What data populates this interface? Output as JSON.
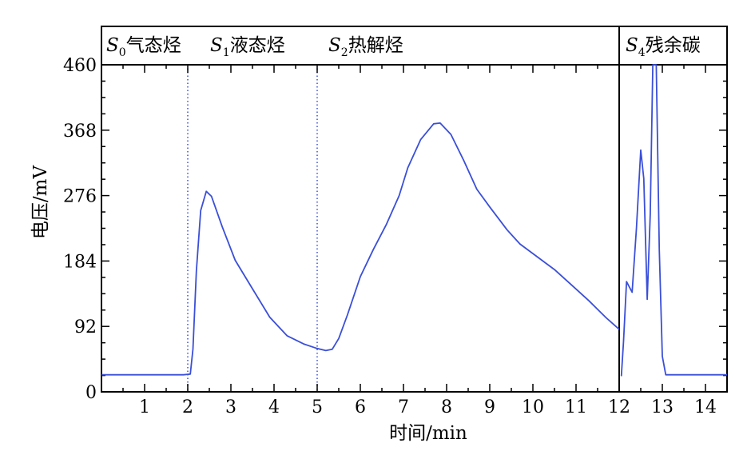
{
  "chart_data": {
    "type": "line",
    "xlabel": "时间/min",
    "ylabel": "电压/mV",
    "xlim": [
      0,
      14.5
    ],
    "ylim": [
      0,
      460
    ],
    "x_ticks": [
      {
        "value": 1,
        "label": "1"
      },
      {
        "value": 2,
        "label": "2"
      },
      {
        "value": 3,
        "label": "3"
      },
      {
        "value": 4,
        "label": "4"
      },
      {
        "value": 5,
        "label": "5"
      },
      {
        "value": 6,
        "label": "6"
      },
      {
        "value": 7,
        "label": "7"
      },
      {
        "value": 8,
        "label": "8"
      },
      {
        "value": 9,
        "label": "9"
      },
      {
        "value": 10,
        "label": "10"
      },
      {
        "value": 11,
        "label": "11"
      },
      {
        "value": 12,
        "label": "12"
      },
      {
        "value": 13,
        "label": "13"
      },
      {
        "value": 14,
        "label": "14"
      }
    ],
    "y_ticks": [
      {
        "value": 0,
        "label": "0"
      },
      {
        "value": 92,
        "label": "92"
      },
      {
        "value": 184,
        "label": "184"
      },
      {
        "value": 276,
        "label": "276"
      },
      {
        "value": 368,
        "label": "368"
      },
      {
        "value": 460,
        "label": "460"
      }
    ],
    "phases": [
      {
        "italic": "S",
        "sub": "0",
        "text": "气态烃",
        "x_start": 0,
        "x_end": 2
      },
      {
        "italic": "S",
        "sub": "1",
        "text": "液态烃",
        "x_start": 2,
        "x_end": 5
      },
      {
        "italic": "S",
        "sub": "2",
        "text": "热解烃",
        "x_start": 5,
        "x_end": 12
      },
      {
        "italic": "S",
        "sub": "4",
        "text": "残余碳",
        "x_start": 12,
        "x_end": 14.5
      }
    ],
    "dotted_dividers": [
      2,
      5
    ],
    "solid_divider": 12,
    "series": [
      {
        "color": "#3a4fd8",
        "segments": [
          {
            "points": [
              [
                0,
                24
              ],
              [
                1.9,
                24
              ],
              [
                2.06,
                25
              ],
              [
                2.12,
                60
              ],
              [
                2.2,
                170
              ],
              [
                2.3,
                255
              ],
              [
                2.43,
                282
              ],
              [
                2.55,
                275
              ],
              [
                2.8,
                232
              ],
              [
                3.1,
                185
              ],
              [
                3.5,
                145
              ],
              [
                3.9,
                105
              ],
              [
                4.3,
                79
              ],
              [
                4.7,
                67
              ],
              [
                5.0,
                61
              ],
              [
                5.2,
                58
              ],
              [
                5.35,
                60
              ],
              [
                5.5,
                75
              ],
              [
                5.7,
                108
              ],
              [
                6.0,
                162
              ],
              [
                6.3,
                200
              ],
              [
                6.6,
                235
              ],
              [
                6.9,
                276
              ],
              [
                7.1,
                315
              ],
              [
                7.4,
                355
              ],
              [
                7.7,
                377
              ],
              [
                7.85,
                378
              ],
              [
                8.1,
                362
              ],
              [
                8.4,
                325
              ],
              [
                8.7,
                285
              ],
              [
                9.0,
                260
              ],
              [
                9.4,
                228
              ],
              [
                9.7,
                208
              ],
              [
                10.1,
                190
              ],
              [
                10.5,
                172
              ],
              [
                10.9,
                150
              ],
              [
                11.3,
                128
              ],
              [
                11.7,
                104
              ],
              [
                12.0,
                88
              ]
            ]
          },
          {
            "points": [
              [
                12.05,
                22
              ],
              [
                12.1,
                70
              ],
              [
                12.17,
                155
              ],
              [
                12.3,
                140
              ],
              [
                12.4,
                230
              ],
              [
                12.5,
                340
              ],
              [
                12.57,
                300
              ],
              [
                12.65,
                130
              ],
              [
                12.72,
                250
              ],
              [
                12.78,
                460
              ],
              [
                12.86,
                460
              ],
              [
                12.93,
                200
              ],
              [
                13.0,
                50
              ],
              [
                13.08,
                24
              ],
              [
                14.5,
                24
              ]
            ]
          }
        ]
      }
    ]
  }
}
